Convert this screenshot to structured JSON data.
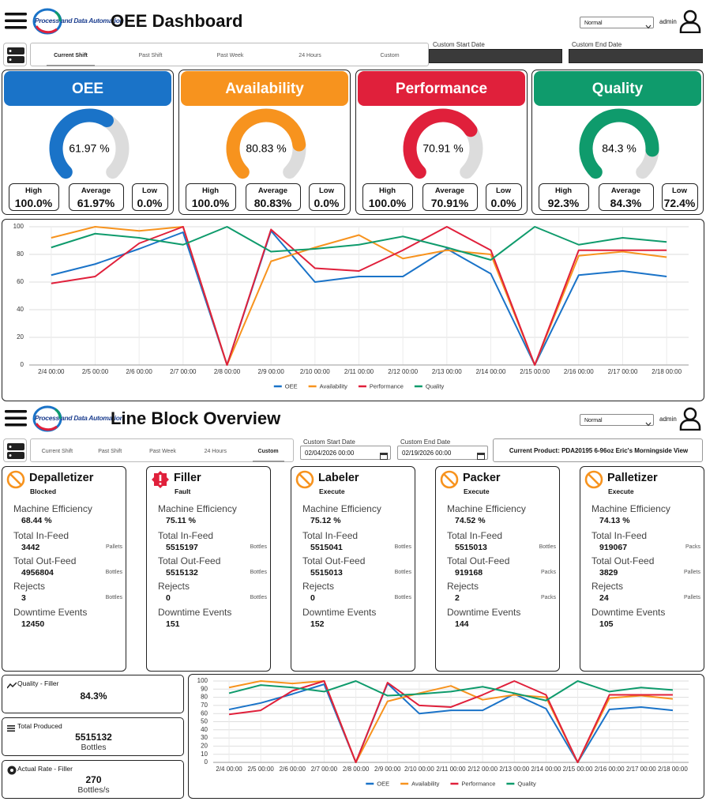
{
  "dashboard": {
    "logo": "Process and Data Automation",
    "title": "OEE Dashboard",
    "mode": "Normal",
    "user": "admin",
    "tabs": [
      "Current Shift",
      "Past Shift",
      "Past Week",
      "24 Hours",
      "Custom"
    ],
    "selected_tab": 0,
    "start_label": "Custom Start Date",
    "end_label": "Custom End Date"
  },
  "kpi_labels": {
    "high": "High",
    "average": "Average",
    "low": "Low"
  },
  "kpis": [
    {
      "title": "OEE",
      "color": "#1a73c8",
      "value": 61.97,
      "value_label": "61.97 %",
      "high": "100.0%",
      "average": "61.97%",
      "low": "0.0%"
    },
    {
      "title": "Availability",
      "color": "#f7931e",
      "value": 80.83,
      "value_label": "80.83 %",
      "high": "100.0%",
      "average": "80.83%",
      "low": "0.0%"
    },
    {
      "title": "Performance",
      "color": "#e0203b",
      "value": 70.91,
      "value_label": "70.91 %",
      "high": "100.0%",
      "average": "70.91%",
      "low": "0.0%"
    },
    {
      "title": "Quality",
      "color": "#0f9b6c",
      "value": 84.3,
      "value_label": "84.3 %",
      "high": "92.3%",
      "average": "84.3%",
      "low": "72.4%"
    }
  ],
  "chart_data": [
    {
      "type": "line",
      "categories": [
        "2/4 00:00",
        "2/5 00:00",
        "2/6 00:00",
        "2/7 00:00",
        "2/8 00:00",
        "2/9 00:00",
        "2/10 00:00",
        "2/11 00:00",
        "2/12 00:00",
        "2/13 00:00",
        "2/14 00:00",
        "2/15 00:00",
        "2/16 00:00",
        "2/17 00:00",
        "2/18 00:00"
      ],
      "series": [
        {
          "name": "OEE",
          "color": "#1a73c8",
          "values": [
            65,
            73,
            84,
            96,
            0,
            97,
            60,
            64,
            64,
            84,
            66,
            0,
            65,
            68,
            64
          ]
        },
        {
          "name": "Availability",
          "color": "#f7931e",
          "values": [
            92,
            100,
            97,
            100,
            0,
            75,
            85,
            94,
            77,
            83,
            80,
            0,
            79,
            82,
            78
          ]
        },
        {
          "name": "Performance",
          "color": "#e0203b",
          "values": [
            59,
            64,
            88,
            100,
            0,
            98,
            70,
            68,
            83,
            100,
            83,
            0,
            83,
            83,
            83
          ]
        },
        {
          "name": "Quality",
          "color": "#0f9b6c",
          "values": [
            85,
            95,
            92,
            87,
            100,
            82,
            84,
            87,
            93,
            85,
            76,
            100,
            87,
            92,
            89
          ]
        }
      ],
      "ylim": [
        0,
        100
      ],
      "yticks": [
        0,
        20,
        40,
        60,
        80,
        100
      ],
      "grid": true,
      "legend": "bottom"
    },
    {
      "type": "line",
      "categories": [
        "2/4 00:00",
        "2/5 00:00",
        "2/6 00:00",
        "2/7 00:00",
        "2/8 00:00",
        "2/9 00:00",
        "2/10 00:00",
        "2/11 00:00",
        "2/12 00:00",
        "2/13 00:00",
        "2/14 00:00",
        "2/15 00:00",
        "2/16 00:00",
        "2/17 00:00",
        "2/18 00:00"
      ],
      "series": [
        {
          "name": "OEE",
          "color": "#1a73c8",
          "values": [
            65,
            73,
            84,
            96,
            0,
            97,
            60,
            64,
            64,
            84,
            66,
            0,
            65,
            68,
            64
          ]
        },
        {
          "name": "Availability",
          "color": "#f7931e",
          "values": [
            92,
            100,
            97,
            100,
            0,
            75,
            85,
            94,
            77,
            83,
            80,
            0,
            79,
            82,
            78
          ]
        },
        {
          "name": "Performance",
          "color": "#e0203b",
          "values": [
            59,
            64,
            88,
            100,
            0,
            98,
            70,
            68,
            83,
            100,
            83,
            0,
            83,
            83,
            83
          ]
        },
        {
          "name": "Quality",
          "color": "#0f9b6c",
          "values": [
            85,
            95,
            92,
            87,
            100,
            82,
            84,
            87,
            93,
            85,
            76,
            100,
            87,
            92,
            89
          ]
        }
      ],
      "ylim": [
        0,
        100
      ],
      "yticks": [
        0,
        10,
        20,
        30,
        40,
        50,
        60,
        70,
        80,
        90,
        100
      ],
      "grid": true,
      "legend": "bottom"
    }
  ],
  "line_block": {
    "logo": "Process and Data Automation",
    "title": "Line Block Overview",
    "mode": "Normal",
    "user": "admin",
    "tabs": [
      "Current Shift",
      "Past Shift",
      "Past Week",
      "24 Hours",
      "Custom"
    ],
    "selected_tab": 4,
    "start_label": "Custom Start Date",
    "start_value": "02/04/2026 00:00",
    "end_label": "Custom End Date",
    "end_value": "02/19/2026 00:00",
    "product": "Current Product: PDA20195 6-96oz Eric's Morningside View"
  },
  "machine_labels": {
    "efficiency": "Machine Efficiency",
    "in_feed": "Total In-Feed",
    "out_feed": "Total Out-Feed",
    "rejects": "Rejects",
    "downtime": "Downtime Events"
  },
  "machines": [
    {
      "name": "Depalletizer",
      "status": "Blocked",
      "icon": "blocked",
      "efficiency": "68.44 %",
      "in_feed": 3442,
      "in_unit": "Pallets",
      "out_feed": 4956804,
      "out_unit": "Bottles",
      "rejects": 3,
      "rejects_unit": "Bottles",
      "downtime": 12450
    },
    {
      "name": "Filler",
      "status": "Fault",
      "icon": "fault",
      "efficiency": "75.11 %",
      "in_feed": 5515197,
      "in_unit": "Bottles",
      "out_feed": 5515132,
      "out_unit": "Bottles",
      "rejects": 0,
      "rejects_unit": "Bottles",
      "downtime": 151
    },
    {
      "name": "Labeler",
      "status": "Execute",
      "icon": "blocked",
      "efficiency": "75.12 %",
      "in_feed": 5515041,
      "in_unit": "Bottles",
      "out_feed": 5515013,
      "out_unit": "Bottles",
      "rejects": 0,
      "rejects_unit": "Bottles",
      "downtime": 152
    },
    {
      "name": "Packer",
      "status": "Execute",
      "icon": "blocked",
      "efficiency": "74.52 %",
      "in_feed": 5515013,
      "in_unit": "Bottles",
      "out_feed": 919168,
      "out_unit": "Packs",
      "rejects": 2,
      "rejects_unit": "Packs",
      "downtime": 144
    },
    {
      "name": "Palletizer",
      "status": "Execute",
      "icon": "blocked",
      "efficiency": "74.13 %",
      "in_feed": 919067,
      "in_unit": "Packs",
      "out_feed": 3829,
      "out_unit": "Pallets",
      "rejects": 24,
      "rejects_unit": "Pallets",
      "downtime": 105
    }
  ],
  "summary": [
    {
      "label": "Quality - Filler",
      "value": "84.3%"
    },
    {
      "label": "Total Produced",
      "value": 5515132,
      "unit": "Bottles"
    },
    {
      "label": "Actual Rate - Filler",
      "value": 270,
      "unit": "Bottles/s"
    }
  ]
}
